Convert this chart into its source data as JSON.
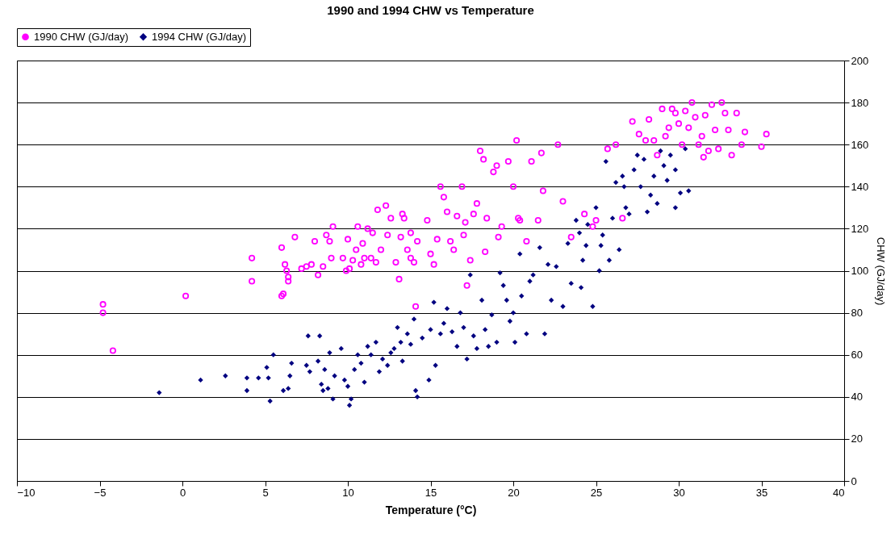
{
  "chart_data": {
    "type": "scatter",
    "title": "1990 and 1994 CHW vs Temperature",
    "xlabel": "Temperature (°C)",
    "ylabel": "CHW (GJ/day)",
    "xlim": [
      -10,
      40
    ],
    "xticks": [
      -10,
      -5,
      0,
      5,
      10,
      15,
      20,
      25,
      30,
      35,
      40
    ],
    "ylim": [
      0,
      200
    ],
    "yticks": [
      0,
      20,
      40,
      60,
      80,
      100,
      120,
      140,
      160,
      180,
      200
    ],
    "grid": "y",
    "legend": "top",
    "series": [
      {
        "name": "1990 CHW (GJ/day)",
        "color": "#ff00ff",
        "marker": "circle",
        "x": [
          -4.8,
          -4.8,
          -4.2,
          0.2,
          4.2,
          4.2,
          6,
          6.1,
          6,
          6.2,
          6.3,
          6.4,
          6.4,
          6.8,
          7.2,
          7.5,
          7.8,
          8,
          8.2,
          8.5,
          8.7,
          8.9,
          9,
          9.1,
          9.7,
          9.9,
          10,
          10.1,
          10.3,
          10.5,
          10.6,
          10.8,
          10.9,
          11,
          11.2,
          11.4,
          11.5,
          11.7,
          11.8,
          12,
          12.3,
          12.4,
          12.6,
          12.9,
          13.1,
          13.2,
          13.3,
          13.4,
          13.6,
          13.8,
          13.8,
          14,
          14.1,
          14.2,
          14.8,
          15,
          15.2,
          15.4,
          15.6,
          15.8,
          16,
          16.2,
          16.4,
          16.6,
          16.9,
          17,
          17.1,
          17.2,
          17.4,
          17.6,
          17.8,
          18,
          18.2,
          18.3,
          18.4,
          18.8,
          19,
          19.1,
          19.3,
          19.7,
          20,
          20.2,
          20.3,
          20.4,
          20.8,
          21.1,
          21.5,
          21.7,
          21.8,
          22.7,
          23,
          23.5,
          24.3,
          24.8,
          25,
          25.7,
          26.2,
          26.6,
          27.2,
          27.6,
          28,
          28.2,
          28.5,
          28.7,
          29,
          29.2,
          29.4,
          29.6,
          29.8,
          30,
          30.2,
          30.4,
          30.6,
          30.8,
          31,
          31.2,
          31.4,
          31.5,
          31.6,
          31.8,
          32,
          32.2,
          32.4,
          32.6,
          32.8,
          33,
          33.2,
          33.5,
          33.8,
          34,
          35,
          35.3
        ],
        "values": [
          84,
          80,
          62,
          88,
          106,
          95,
          88,
          89,
          111,
          103,
          100,
          97,
          95,
          116,
          101,
          102,
          103,
          114,
          98,
          102,
          117,
          114,
          106,
          121,
          106,
          100,
          115,
          101,
          105,
          110,
          121,
          103,
          113,
          106,
          120,
          106,
          118,
          104,
          129,
          110,
          131,
          117,
          125,
          104,
          96,
          116,
          127,
          125,
          110,
          118,
          106,
          104,
          83,
          114,
          124,
          108,
          103,
          115,
          140,
          135,
          128,
          114,
          110,
          126,
          140,
          117,
          123,
          93,
          105,
          127,
          132,
          157,
          153,
          109,
          125,
          147,
          150,
          116,
          121,
          152,
          140,
          162,
          125,
          124,
          114,
          152,
          124,
          156,
          138,
          160,
          133,
          116,
          127,
          121,
          124,
          158,
          160,
          125,
          171,
          165,
          162,
          172,
          162,
          155,
          177,
          164,
          168,
          177,
          175,
          170,
          160,
          176,
          168,
          180,
          173,
          160,
          164,
          154,
          174,
          157,
          179,
          167,
          158,
          180,
          175,
          167,
          155,
          175,
          160,
          166,
          159,
          165
        ]
      },
      {
        "name": "1994 CHW (GJ/day)",
        "color": "#000080",
        "marker": "diamond",
        "x": [
          -1.4,
          1.1,
          2.6,
          3.9,
          3.9,
          4.6,
          5.1,
          5.2,
          5.3,
          5.5,
          6.1,
          6.4,
          6.5,
          6.6,
          7.5,
          7.6,
          7.7,
          8.2,
          8.3,
          8.4,
          8.5,
          8.6,
          8.8,
          8.9,
          9.1,
          9.2,
          9.6,
          9.8,
          10,
          10.1,
          10.2,
          10.4,
          10.6,
          10.8,
          11,
          11.2,
          11.4,
          11.7,
          11.9,
          12.1,
          12.4,
          12.6,
          12.8,
          13,
          13.2,
          13.3,
          13.6,
          13.8,
          14,
          14.1,
          14.2,
          14.5,
          14.9,
          15,
          15.2,
          15.3,
          15.6,
          15.8,
          16,
          16.3,
          16.6,
          16.8,
          17,
          17.2,
          17.4,
          17.6,
          17.8,
          18.1,
          18.3,
          18.5,
          18.7,
          19,
          19.2,
          19.4,
          19.6,
          19.8,
          20,
          20.1,
          20.4,
          20.5,
          20.8,
          21,
          21.2,
          21.6,
          21.9,
          22.1,
          22.3,
          22.6,
          23,
          23.3,
          23.5,
          23.8,
          24,
          24.2,
          24.4,
          24.5,
          24.8,
          25,
          25.2,
          25.4,
          25.6,
          25.8,
          26,
          26.2,
          26.4,
          26.6,
          26.8,
          27,
          27.3,
          27.5,
          27.7,
          27.9,
          28.1,
          28.3,
          28.5,
          28.7,
          28.9,
          29.1,
          29.3,
          29.5,
          29.8,
          30.1,
          30.4,
          30.6,
          29.8,
          26.7,
          25.3,
          24.1
        ],
        "values": [
          42,
          48,
          50,
          49,
          43,
          49,
          54,
          49,
          38,
          60,
          43,
          44,
          50,
          56,
          55,
          69,
          52,
          57,
          69,
          46,
          43,
          53,
          44,
          61,
          39,
          50,
          63,
          48,
          45,
          36,
          39,
          53,
          60,
          56,
          47,
          64,
          60,
          66,
          52,
          58,
          55,
          61,
          63,
          73,
          66,
          57,
          70,
          65,
          77,
          43,
          40,
          68,
          48,
          72,
          85,
          55,
          70,
          75,
          82,
          71,
          64,
          80,
          73,
          58,
          98,
          69,
          63,
          86,
          72,
          64,
          79,
          66,
          99,
          93,
          86,
          76,
          80,
          66,
          108,
          88,
          70,
          95,
          98,
          111,
          70,
          103,
          86,
          102,
          83,
          113,
          94,
          124,
          118,
          105,
          112,
          122,
          83,
          130,
          100,
          117,
          152,
          105,
          125,
          142,
          110,
          145,
          130,
          127,
          148,
          155,
          140,
          153,
          128,
          136,
          145,
          132,
          157,
          150,
          143,
          155,
          130,
          137,
          158,
          138,
          148,
          140,
          112,
          92
        ]
      }
    ]
  }
}
